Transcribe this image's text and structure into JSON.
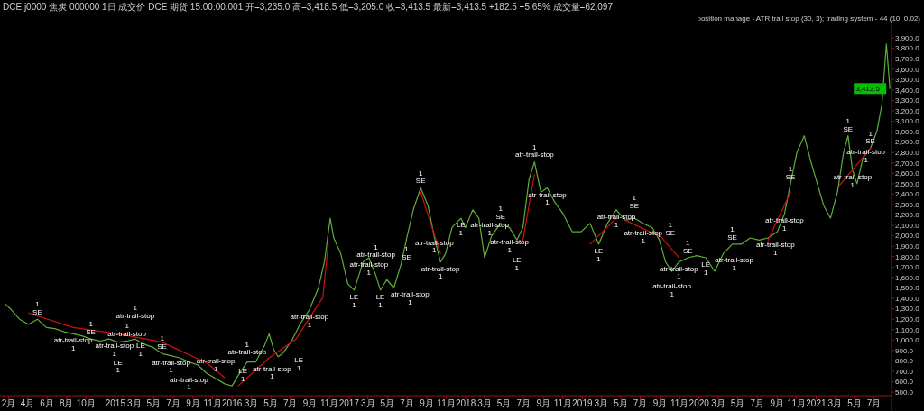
{
  "chart_data": {
    "type": "line",
    "title": "DCE.j0000  焦炭 000000  1日  成交价  DCE  期货  15:00:00.001  开=3,235.0  高=3,418.5  低=3,205.0  收=3,413.5  最新=3,413.5  +182.5  +5.65%  成交量=62,097",
    "subtitle": "position manage - ATR trail stop (30,  3); trading system - 44 (10,  0.02)",
    "x": [
      "2014-01-20",
      "2014-02-10",
      "2014-03-07",
      "2014-04-04",
      "2014-05-02",
      "2014-05-30",
      "2014-06-25",
      "2014-07-24",
      "2014-08-22",
      "2014-09-18",
      "2014-10-16",
      "2014-11-14",
      "2014-12-12",
      "2015-01-09",
      "2015-02-06",
      "2015-03-04",
      "2015-04-01",
      "2015-04-29",
      "2015-05-27",
      "2015-06-24",
      "2015-07-21",
      "2015-08-19",
      "2015-09-16",
      "2015-10-14",
      "2015-11-11",
      "2015-12-09",
      "2016-01-01",
      "2016-01-20",
      "2016-02-17",
      "2016-03-15",
      "2016-04-12",
      "2016-04-26",
      "2016-05-10",
      "2016-05-24",
      "2016-06-07",
      "2016-07-05",
      "2016-08-02",
      "2016-08-30",
      "2016-09-27",
      "2016-10-16",
      "2016-11-03",
      "2016-11-14",
      "2016-12-06",
      "2016-12-28",
      "2017-01-17",
      "2017-02-14",
      "2017-03-04",
      "2017-03-26",
      "2017-04-09",
      "2017-04-29",
      "2017-05-21",
      "2017-06-13",
      "2017-07-02",
      "2017-07-21",
      "2017-08-13",
      "2017-09-05",
      "2017-09-24",
      "2017-10-14",
      "2017-10-30",
      "2017-11-19",
      "2017-12-17",
      "2017-12-31",
      "2018-01-23",
      "2018-02-11",
      "2018-03-01",
      "2018-03-23",
      "2018-04-20",
      "2018-05-18",
      "2018-06-10",
      "2018-06-29",
      "2018-07-18",
      "2018-08-04",
      "2018-08-24",
      "2018-09-13",
      "2018-10-05",
      "2018-11-02",
      "2018-11-30",
      "2018-12-28",
      "2019-01-25",
      "2019-02-21",
      "2019-03-20",
      "2019-04-17",
      "2019-05-15",
      "2019-06-12",
      "2019-07-10",
      "2019-08-07",
      "2019-08-30",
      "2019-09-18",
      "2019-10-08",
      "2019-10-30",
      "2019-11-27",
      "2019-12-25",
      "2020-01-22",
      "2020-02-19",
      "2020-03-17",
      "2020-04-14",
      "2020-05-12",
      "2020-06-09",
      "2020-07-07",
      "2020-08-04",
      "2020-09-02",
      "2020-09-24",
      "2020-10-13",
      "2020-11-02",
      "2020-11-25",
      "2020-12-16",
      "2021-01-05",
      "2021-01-25",
      "2021-02-15",
      "2021-03-09",
      "2021-03-28",
      "2021-04-11",
      "2021-04-25",
      "2021-05-09",
      "2021-05-28",
      "2021-06-20",
      "2021-07-10",
      "2021-07-26",
      "2021-08-09",
      "2021-08-20"
    ],
    "series": [
      {
        "color": "#5fae3c",
        "values": [
          1350,
          1290,
          1200,
          1150,
          1200,
          1120,
          1110,
          1080,
          1060,
          1040,
          1010,
          990,
          1010,
          980,
          990,
          1010,
          960,
          930,
          870,
          850,
          830,
          790,
          760,
          680,
          630,
          580,
          560,
          660,
          790,
          790,
          950,
          1060,
          910,
          840,
          870,
          990,
          1160,
          1290,
          1500,
          1750,
          2170,
          1980,
          1830,
          1540,
          1480,
          1750,
          1790,
          1620,
          1480,
          1580,
          1500,
          1730,
          2000,
          2250,
          2460,
          2290,
          2000,
          1750,
          1830,
          2080,
          2170,
          2080,
          2250,
          2170,
          1790,
          2000,
          2120,
          2080,
          1960,
          2080,
          2540,
          2710,
          2420,
          2460,
          2330,
          2210,
          2040,
          2040,
          2120,
          1920,
          2120,
          2250,
          2150,
          2170,
          2120,
          2080,
          1960,
          1750,
          1660,
          1750,
          1790,
          1810,
          1790,
          1660,
          1830,
          1920,
          1920,
          1980,
          1960,
          1980,
          2040,
          2210,
          2500,
          2800,
          2960,
          2710,
          2500,
          2290,
          2170,
          2420,
          2800,
          2960,
          2630,
          2500,
          2750,
          2840,
          3000,
          3260,
          3840,
          3413.5
        ]
      },
      {
        "color": "#d01010",
        "x": [
          "2014-04-04",
          "2014-08-22",
          "2015-01-09",
          "2015-05-27",
          "2015-10-14",
          "2015-12-09"
        ],
        "values": [
          1260,
          1120,
          1060,
          980,
          780,
          640
        ]
      },
      {
        "color": "#d01010",
        "x": [
          "2016-01-20",
          "2016-04-26",
          "2016-07-19",
          "2016-10-11",
          "2016-10-28"
        ],
        "values": [
          560,
          830,
          1010,
          1410,
          1920
        ]
      },
      {
        "color": "#d01010",
        "x": [
          "2017-08-13",
          "2017-10-14"
        ],
        "values": [
          2420,
          1830
        ]
      },
      {
        "color": "#d01010",
        "x": [
          "2018-06-29",
          "2018-08-04"
        ],
        "values": [
          1960,
          2590
        ]
      },
      {
        "color": "#d01010",
        "x": [
          "2019-01-25",
          "2019-04-17"
        ],
        "values": [
          1920,
          2170
        ]
      },
      {
        "color": "#d01010",
        "x": [
          "2019-05-15",
          "2019-09-04",
          "2019-10-30"
        ],
        "values": [
          2150,
          1990,
          1790
        ]
      },
      {
        "color": "#d01010",
        "x": [
          "2020-08-04",
          "2020-10-13"
        ],
        "values": [
          1960,
          2420
        ]
      },
      {
        "color": "#d01010",
        "x": [
          "2021-03-14",
          "2021-06-20"
        ],
        "values": [
          2480,
          2840
        ]
      }
    ],
    "xlim": [
      "2014-01-05",
      "2021-08-25"
    ],
    "xticks": [
      {
        "value": "2014-02",
        "label": "2月"
      },
      {
        "value": "2014-04",
        "label": "4月"
      },
      {
        "value": "2014-06",
        "label": "6月"
      },
      {
        "value": "2014-08",
        "label": "8月"
      },
      {
        "value": "2014-10",
        "label": "10月"
      },
      {
        "value": "2015-01",
        "label": "2015"
      },
      {
        "value": "2015-03",
        "label": "3月"
      },
      {
        "value": "2015-05",
        "label": "5月"
      },
      {
        "value": "2015-07",
        "label": "7月"
      },
      {
        "value": "2015-09",
        "label": "9月"
      },
      {
        "value": "2015-11",
        "label": "11月"
      },
      {
        "value": "2016-01",
        "label": "2016"
      },
      {
        "value": "2016-03",
        "label": "3月"
      },
      {
        "value": "2016-05",
        "label": "5月"
      },
      {
        "value": "2016-07",
        "label": "7月"
      },
      {
        "value": "2016-09",
        "label": "9月"
      },
      {
        "value": "2016-11",
        "label": "11月"
      },
      {
        "value": "2017-01",
        "label": "2017"
      },
      {
        "value": "2017-03",
        "label": "3月"
      },
      {
        "value": "2017-05",
        "label": "5月"
      },
      {
        "value": "2017-07",
        "label": "7月"
      },
      {
        "value": "2017-09",
        "label": "9月"
      },
      {
        "value": "2017-11",
        "label": "11月"
      },
      {
        "value": "2018-01",
        "label": "2018"
      },
      {
        "value": "2018-03",
        "label": "3月"
      },
      {
        "value": "2018-05",
        "label": "5月"
      },
      {
        "value": "2018-07",
        "label": "7月"
      },
      {
        "value": "2018-09",
        "label": "9月"
      },
      {
        "value": "2018-11",
        "label": "11月"
      },
      {
        "value": "2019-01",
        "label": "2019"
      },
      {
        "value": "2019-03",
        "label": "3月"
      },
      {
        "value": "2019-05",
        "label": "5月"
      },
      {
        "value": "2019-07",
        "label": "7月"
      },
      {
        "value": "2019-09",
        "label": "9月"
      },
      {
        "value": "2019-11",
        "label": "11月"
      },
      {
        "value": "2020-01",
        "label": "2020"
      },
      {
        "value": "2020-03",
        "label": "3月"
      },
      {
        "value": "2020-05",
        "label": "5月"
      },
      {
        "value": "2020-07",
        "label": "7月"
      },
      {
        "value": "2020-09",
        "label": "9月"
      },
      {
        "value": "2020-11",
        "label": "11月"
      },
      {
        "value": "2021-01",
        "label": "2021"
      },
      {
        "value": "2021-03",
        "label": "3月"
      },
      {
        "value": "2021-05",
        "label": "5月"
      },
      {
        "value": "2021-07",
        "label": "7月"
      }
    ],
    "ylim": [
      475,
      4030
    ],
    "yticks": [
      {
        "value": 500,
        "label": "500.0"
      },
      {
        "value": 600,
        "label": "600.0"
      },
      {
        "value": 700,
        "label": "700.0"
      },
      {
        "value": 800,
        "label": "800.0"
      },
      {
        "value": 900,
        "label": "900.0"
      },
      {
        "value": 1000,
        "label": "1,000.0"
      },
      {
        "value": 1100,
        "label": "1,100.0"
      },
      {
        "value": 1200,
        "label": "1,200.0"
      },
      {
        "value": 1300,
        "label": "1,300.0"
      },
      {
        "value": 1400,
        "label": "1,400.0"
      },
      {
        "value": 1500,
        "label": "1,500.0"
      },
      {
        "value": 1600,
        "label": "1,600.0"
      },
      {
        "value": 1700,
        "label": "1,700.0"
      },
      {
        "value": 1800,
        "label": "1,800.0"
      },
      {
        "value": 1900,
        "label": "1,900.0"
      },
      {
        "value": 2000,
        "label": "2,000.0"
      },
      {
        "value": 2100,
        "label": "2,100.0"
      },
      {
        "value": 2200,
        "label": "2,200.0"
      },
      {
        "value": 2300,
        "label": "2,300.0"
      },
      {
        "value": 2400,
        "label": "2,400.0"
      },
      {
        "value": 2500,
        "label": "2,500.0"
      },
      {
        "value": 2600,
        "label": "2,600.0"
      },
      {
        "value": 2700,
        "label": "2,700.0"
      },
      {
        "value": 2800,
        "label": "2,800.0"
      },
      {
        "value": 2900,
        "label": "2,900.0"
      },
      {
        "value": 3000,
        "label": "3,000.0"
      },
      {
        "value": 3100,
        "label": "3,100.0"
      },
      {
        "value": 3200,
        "label": "3,200.0"
      },
      {
        "value": 3300,
        "label": "3,300.0"
      },
      {
        "value": 3400,
        "label": "3,400.0"
      },
      {
        "value": 3500,
        "label": "3,500.0"
      },
      {
        "value": 3600,
        "label": "3,600.0"
      },
      {
        "value": 3700,
        "label": "3,700.0"
      },
      {
        "value": 3800,
        "label": "3,800.0"
      },
      {
        "value": 3900,
        "label": "3,900.0"
      }
    ],
    "grid": false,
    "annotations": [
      {
        "text": "1\nSE",
        "x": "2014-05-02",
        "y": 1200
      },
      {
        "text": "atr-trail-stop\n1",
        "x": "2014-08-22",
        "y": 1060
      },
      {
        "text": "1\nSE",
        "x": "2014-10-16",
        "y": 1010
      },
      {
        "text": "atr-trail-stop\n1",
        "x": "2014-12-12",
        "y": 1010
      },
      {
        "text": "1\natr-trail-stop",
        "x": "2015-02-06",
        "y": 990
      },
      {
        "text": "1\natr-trail-stop",
        "x": "2015-03-04",
        "y": 1010
      },
      {
        "text": "LE\n1",
        "x": "2015-01-09",
        "y": 980
      },
      {
        "text": "LE\n1",
        "x": "2015-03-04",
        "y": 1010
      },
      {
        "text": "1\nSE",
        "x": "2015-05-27",
        "y": 870
      },
      {
        "text": "atr-trail-stop\n1",
        "x": "2015-06-24",
        "y": 850
      },
      {
        "text": "atr-trail-stop\n1",
        "x": "2015-08-19",
        "y": 790
      },
      {
        "text": "atr-trail-stop\n1",
        "x": "2015-11-11",
        "y": 630
      },
      {
        "text": "LE\n1",
        "x": "2016-01-01",
        "y": 560
      },
      {
        "text": "1\natr-trail-stop",
        "x": "2016-02-17",
        "y": 790
      },
      {
        "text": "atr-trail-stop\n1",
        "x": "2016-03-15",
        "y": 790
      },
      {
        "text": "LE\n1",
        "x": "2016-06-07",
        "y": 870
      },
      {
        "text": "atr-trail-stop\n1",
        "x": "2016-08-30",
        "y": 1290
      },
      {
        "text": "atr-trail-stop\n1",
        "x": "2017-03-04",
        "y": 1790
      },
      {
        "text": "1\natr-trail-stop",
        "x": "2017-03-26",
        "y": 1620
      },
      {
        "text": "LE\n1",
        "x": "2017-01-17",
        "y": 1480
      },
      {
        "text": "LE\n1",
        "x": "2017-04-09",
        "y": 1480
      },
      {
        "text": "1\nSE",
        "x": "2017-06-13",
        "y": 1730
      },
      {
        "text": "atr-trail-stop\n1",
        "x": "2017-05-21",
        "y": 1500
      },
      {
        "text": "atr-trail-stop\n1",
        "x": "2017-07-02",
        "y": 2000
      },
      {
        "text": "1\nSE",
        "x": "2017-08-13",
        "y": 2460
      },
      {
        "text": "atr-trail-stop\n1",
        "x": "2017-10-14",
        "y": 1750
      },
      {
        "text": "LE\n1",
        "x": "2017-12-17",
        "y": 2170
      },
      {
        "text": "atr-trail-stop\n1",
        "x": "2018-02-11",
        "y": 2170
      },
      {
        "text": "1\nSE",
        "x": "2018-04-20",
        "y": 2120
      },
      {
        "text": "atr-trail-stop\n1",
        "x": "2018-05-18",
        "y": 2080
      },
      {
        "text": "LE\n1",
        "x": "2018-06-10",
        "y": 1960
      },
      {
        "text": "1\natr-trail-stop",
        "x": "2018-08-04",
        "y": 2710
      },
      {
        "text": "atr-trail-stop\n1",
        "x": "2018-09-13",
        "y": 2460
      },
      {
        "text": "LE\n1",
        "x": "2019-02-21",
        "y": 1920
      },
      {
        "text": "atr-trail-stop\n1",
        "x": "2019-04-17",
        "y": 2250
      },
      {
        "text": "1\nSE",
        "x": "2019-06-12",
        "y": 2170
      },
      {
        "text": "atr-trail-stop\n1",
        "x": "2019-07-10",
        "y": 2120
      },
      {
        "text": "1\nSE",
        "x": "2019-08-30",
        "y": 1960
      },
      {
        "text": "1\nSE",
        "x": "2019-11-27",
        "y": 1790
      },
      {
        "text": "atr-trail-stop\n1",
        "x": "2019-10-30",
        "y": 1750
      },
      {
        "text": "atr-trail-stop\n1",
        "x": "2019-10-08",
        "y": 1660
      },
      {
        "text": "LE\n1",
        "x": "2020-01-22",
        "y": 1790
      },
      {
        "text": "atr-trail-stop\n1",
        "x": "2020-03-17",
        "y": 1830
      },
      {
        "text": "atr-trail-stop\n1",
        "x": "2020-07-07",
        "y": 1980
      },
      {
        "text": "1\nSE",
        "x": "2020-04-14",
        "y": 1920
      },
      {
        "text": "1\nSE",
        "x": "2020-10-13",
        "y": 2500
      },
      {
        "text": "atr-trail-stop\n1",
        "x": "2020-09-24",
        "y": 2210
      },
      {
        "text": "1\nSE",
        "x": "2021-04-11",
        "y": 2960
      },
      {
        "text": "atr-trail-stop\n1",
        "x": "2021-04-25",
        "y": 2630
      },
      {
        "text": "1\nSE",
        "x": "2021-06-20",
        "y": 2840
      },
      {
        "text": "atr-trail-stop\n1",
        "x": "2021-07-10",
        "y": 3000
      },
      {
        "text": "3,413.5",
        "x": "2021-08-20",
        "y": 3413.5
      }
    ]
  }
}
